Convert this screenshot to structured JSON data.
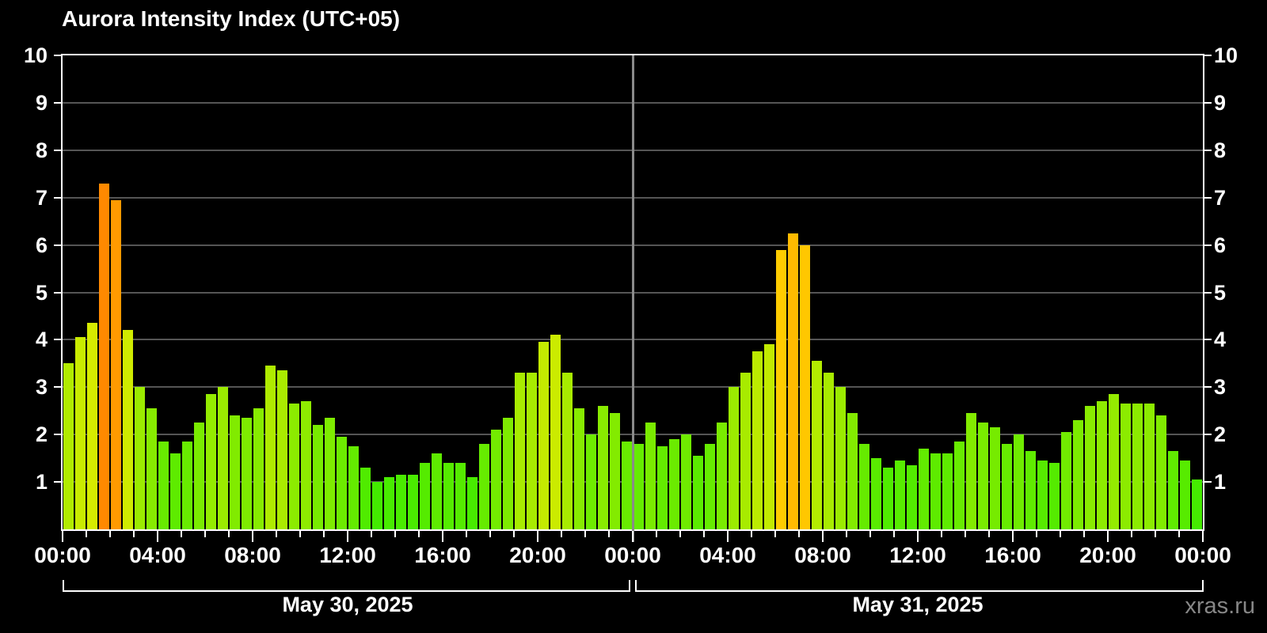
{
  "chart_data": {
    "type": "bar",
    "title": "Aurora Intensity Index (UTC+05)",
    "watermark": "xras.ru",
    "ylim": [
      0,
      10
    ],
    "y_ticks": [
      1,
      2,
      3,
      4,
      5,
      6,
      7,
      8,
      9,
      10
    ],
    "bin_minutes": 30,
    "x_major_every_hours": 4,
    "x_tick_labels": [
      "00:00",
      "04:00",
      "08:00",
      "12:00",
      "16:00",
      "20:00",
      "00:00",
      "04:00",
      "08:00",
      "12:00",
      "16:00",
      "20:00",
      "00:00"
    ],
    "legend": "none",
    "grid": "horizontal",
    "days": [
      {
        "date": "May 30, 2025",
        "values": [
          3.5,
          4.05,
          4.35,
          7.3,
          6.95,
          4.2,
          3.0,
          2.55,
          1.85,
          1.6,
          1.85,
          2.25,
          2.85,
          3.0,
          2.4,
          2.35,
          2.55,
          3.45,
          3.35,
          2.65,
          2.7,
          2.2,
          2.35,
          1.95,
          1.75,
          1.3,
          1.0,
          1.1,
          1.15,
          1.15,
          1.4,
          1.6,
          1.4,
          1.4,
          1.1,
          1.8,
          2.1,
          2.35,
          3.3,
          3.3,
          3.95,
          4.1,
          3.3,
          2.55,
          2.0,
          2.6,
          2.45,
          1.85
        ]
      },
      {
        "date": "May 31, 2025",
        "values": [
          1.8,
          2.25,
          1.75,
          1.9,
          2.0,
          1.55,
          1.8,
          2.25,
          3.0,
          3.3,
          3.75,
          3.9,
          5.9,
          6.25,
          6.0,
          3.55,
          3.3,
          3.0,
          2.45,
          1.8,
          1.5,
          1.3,
          1.45,
          1.35,
          1.7,
          1.6,
          1.6,
          1.85,
          2.45,
          2.25,
          2.15,
          1.8,
          2.0,
          1.65,
          1.45,
          1.4,
          2.05,
          2.3,
          2.6,
          2.7,
          2.85,
          2.65,
          2.65,
          2.65,
          2.4,
          1.65,
          1.45,
          1.05
        ]
      }
    ],
    "colors": {
      "background": "#000000",
      "axis": "#ffffff",
      "text": "#ffffff",
      "gridline": "#555555",
      "day_separator": "#8a8a8a",
      "watermark": "#878787",
      "scale_low_green": "#35EE00",
      "scale_mid_yellow_green": "#9BE000",
      "scale_high_yellow": "#D9F000",
      "scale_storm_gold": "#FFC400",
      "scale_storm_orange": "#FF8C00"
    }
  }
}
